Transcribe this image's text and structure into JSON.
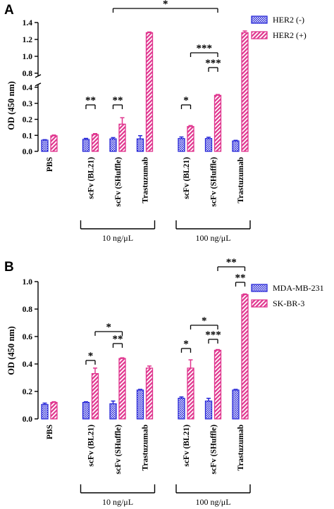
{
  "colors": {
    "blue": "#2a2ad8",
    "magenta": "#e0358e",
    "axis": "#000000"
  },
  "chart_data": [
    {
      "panel": "A",
      "type": "bar",
      "ylabel": "OD (450 nm)",
      "categories": [
        "PBS",
        "scFv (BL21)",
        "scFv (SHuffle)",
        "Trastuzumab",
        "scFv (BL21)",
        "scFv (SHuffle)",
        "Trastuzumab"
      ],
      "gap_after_index": 0,
      "series": [
        {
          "name": "HER2 (-)",
          "values": [
            0.07,
            0.075,
            0.078,
            0.078,
            0.08,
            0.08,
            0.065
          ],
          "errors": [
            0.003,
            0.006,
            0.008,
            0.02,
            0.01,
            0.008,
            0.004
          ],
          "pattern": "dots"
        },
        {
          "name": "HER2 (+)",
          "values": [
            0.097,
            0.105,
            0.17,
            1.28,
            0.155,
            0.35,
            1.28
          ],
          "errors": [
            0.005,
            0.006,
            0.04,
            0.008,
            0.006,
            0.005,
            0.02
          ],
          "pattern": "hatch"
        }
      ],
      "y_axis": {
        "broken": true,
        "lower_range": [
          0,
          0.4
        ],
        "lower_ticks": [
          "0.0",
          "0.1",
          "0.2",
          "0.3",
          "0.4"
        ],
        "upper_range": [
          0.8,
          1.4
        ],
        "upper_ticks": [
          "0.8",
          "1.0",
          "1.2",
          "1.4"
        ]
      },
      "groups": [
        {
          "label": "10 ng/μL",
          "from_index": 1,
          "to_index": 3
        },
        {
          "label": "100 ng/μL",
          "from_index": 4,
          "to_index": 6
        }
      ],
      "significance": [
        {
          "label": "**",
          "from": [
            1,
            0
          ],
          "to": [
            1,
            1
          ]
        },
        {
          "label": "**",
          "from": [
            2,
            0
          ],
          "to": [
            2,
            1
          ]
        },
        {
          "label": "*",
          "from": [
            4,
            0
          ],
          "to": [
            4,
            1
          ]
        },
        {
          "label": "***",
          "from": [
            5,
            0
          ],
          "to": [
            5,
            1
          ]
        },
        {
          "label": "***",
          "from": [
            4,
            1
          ],
          "to": [
            5,
            1
          ]
        },
        {
          "label": "*",
          "from": [
            2,
            0
          ],
          "to": [
            5,
            1
          ]
        }
      ],
      "legend_position": "top-right"
    },
    {
      "panel": "B",
      "type": "bar",
      "ylabel": "OD (450 nm)",
      "categories": [
        "PBS",
        "scFv (BL21)",
        "scFv (SHuffle)",
        "Trastuzumab",
        "scFv (BL21)",
        "scFv (SHuffle)",
        "Trastuzumab"
      ],
      "gap_after_index": 0,
      "series": [
        {
          "name": "MDA-MB-231",
          "values": [
            0.105,
            0.12,
            0.11,
            0.21,
            0.15,
            0.13,
            0.21
          ],
          "errors": [
            0.01,
            0.005,
            0.02,
            0.005,
            0.01,
            0.02,
            0.005
          ],
          "pattern": "dots"
        },
        {
          "name": "SK-BR-3",
          "values": [
            0.12,
            0.33,
            0.44,
            0.37,
            0.37,
            0.5,
            0.905
          ],
          "errors": [
            0.005,
            0.04,
            0.005,
            0.015,
            0.06,
            0.005,
            0.005
          ],
          "pattern": "hatch"
        }
      ],
      "y_axis": {
        "broken": false,
        "range": [
          0,
          1.0
        ],
        "ticks": [
          "0.0",
          "0.2",
          "0.4",
          "0.6",
          "0.8",
          "1.0"
        ]
      },
      "groups": [
        {
          "label": "10 ng/μL",
          "from_index": 1,
          "to_index": 3
        },
        {
          "label": "100 ng/μL",
          "from_index": 4,
          "to_index": 6
        }
      ],
      "significance": [
        {
          "label": "*",
          "from": [
            1,
            0
          ],
          "to": [
            1,
            1
          ]
        },
        {
          "label": "**",
          "from": [
            2,
            0
          ],
          "to": [
            2,
            1
          ]
        },
        {
          "label": "*",
          "from": [
            1,
            1
          ],
          "to": [
            2,
            1
          ]
        },
        {
          "label": "*",
          "from": [
            4,
            0
          ],
          "to": [
            4,
            1
          ]
        },
        {
          "label": "***",
          "from": [
            5,
            0
          ],
          "to": [
            5,
            1
          ]
        },
        {
          "label": "*",
          "from": [
            4,
            1
          ],
          "to": [
            5,
            1
          ]
        },
        {
          "label": "**",
          "from": [
            6,
            0
          ],
          "to": [
            6,
            1
          ]
        },
        {
          "label": "**",
          "from": [
            5,
            1
          ],
          "to": [
            6,
            1
          ]
        }
      ],
      "legend_position": "top-right"
    }
  ]
}
